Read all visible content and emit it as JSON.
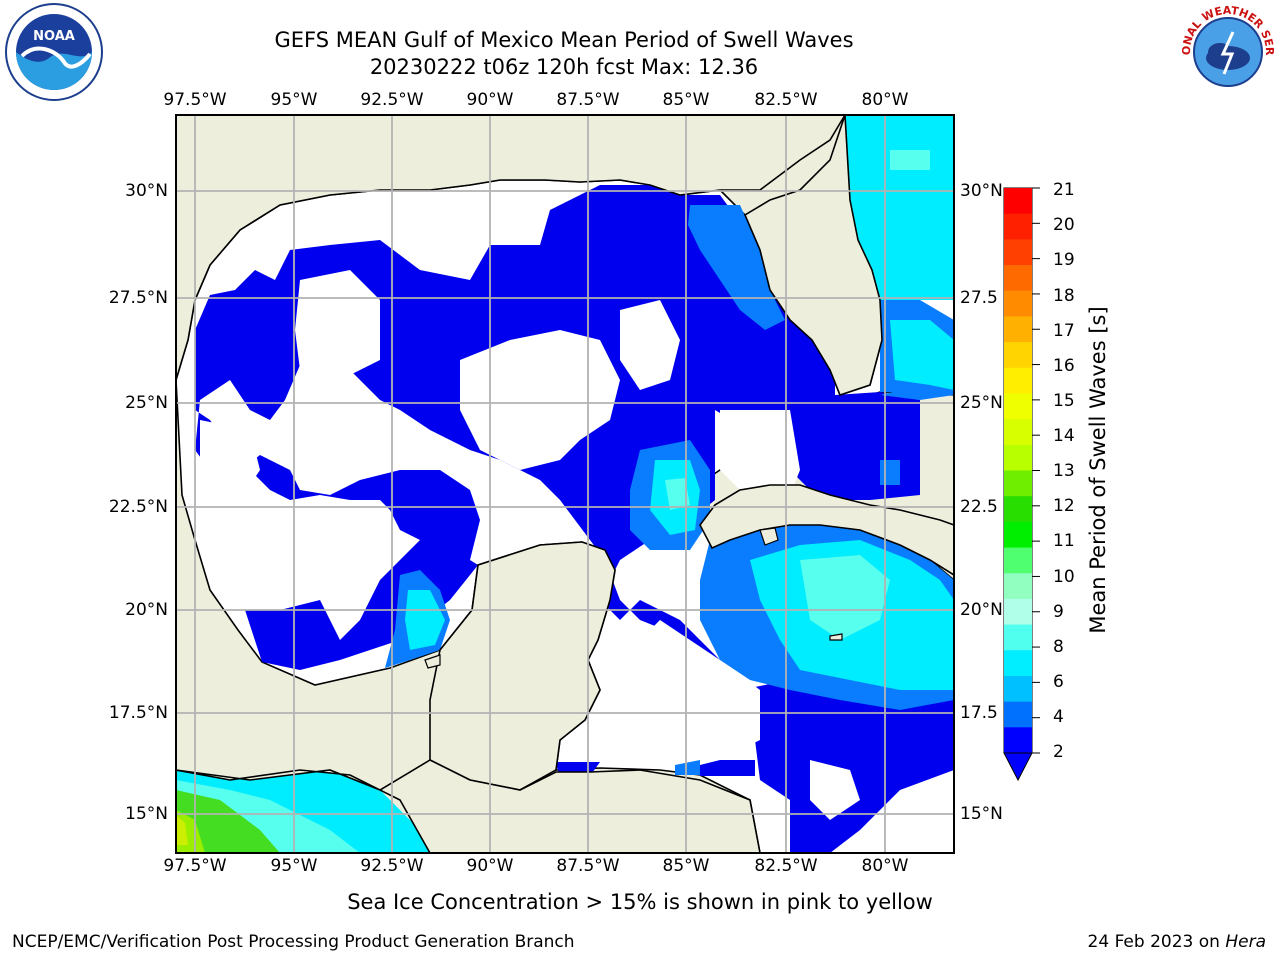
{
  "title_line1": "GEFS MEAN Gulf of Mexico Mean Period of Swell Waves",
  "title_line2": "20230222 t06z 120h fcst   Max: 12.36",
  "lon_labels": [
    "97.5°W",
    "95°W",
    "92.5°W",
    "90°W",
    "87.5°W",
    "85°W",
    "82.5°W",
    "80°W"
  ],
  "lat_labels_left": [
    "30°N",
    "27.5°N",
    "25°N",
    "22.5°N",
    "20°N",
    "17.5°N",
    "15°N"
  ],
  "lat_labels_right": [
    "30°N",
    "27.5",
    "25°N",
    "22.5",
    "20°N",
    "17.5",
    "15°N"
  ],
  "colorbar": {
    "title": "Mean Period of Swell Waves [s]",
    "ticks": [
      "21",
      "20",
      "19",
      "18",
      "17",
      "16",
      "15",
      "14",
      "13",
      "12",
      "11",
      "10",
      "9",
      "8",
      "6",
      "4",
      "2"
    ],
    "colors": [
      "#ff0000",
      "#ff2000",
      "#ff4000",
      "#ff6a00",
      "#ff8c00",
      "#ffb000",
      "#ffd400",
      "#ffee00",
      "#f0ff00",
      "#d8ff00",
      "#b8ff00",
      "#70ee00",
      "#28dd00",
      "#00ee00",
      "#50ff70",
      "#90ffc0",
      "#b0ffe8",
      "#50ffee",
      "#00eeff",
      "#00c0ff",
      "#0070ff",
      "#0000ff"
    ]
  },
  "colors": {
    "land": "#eeeedd",
    "ocean_empty": "#ffffff",
    "swell_2_4": "#0000ee",
    "swell_4_6": "#0a7dff",
    "swell_6_8": "#00ecff",
    "swell_8_9": "#56ffee",
    "swell_high": "#44dd22",
    "grid": "#b3b3b3"
  },
  "bottom_note": "Sea Ice Concentration > 15% is shown in pink to yellow",
  "footer_left": "NCEP/EMC/Verification Post Processing Product Generation Branch",
  "footer_date": "24 Feb 2023 on",
  "footer_machine": "Hera",
  "logos": {
    "left": "NOAA",
    "right": "NATIONAL WEATHER SERVICE"
  }
}
